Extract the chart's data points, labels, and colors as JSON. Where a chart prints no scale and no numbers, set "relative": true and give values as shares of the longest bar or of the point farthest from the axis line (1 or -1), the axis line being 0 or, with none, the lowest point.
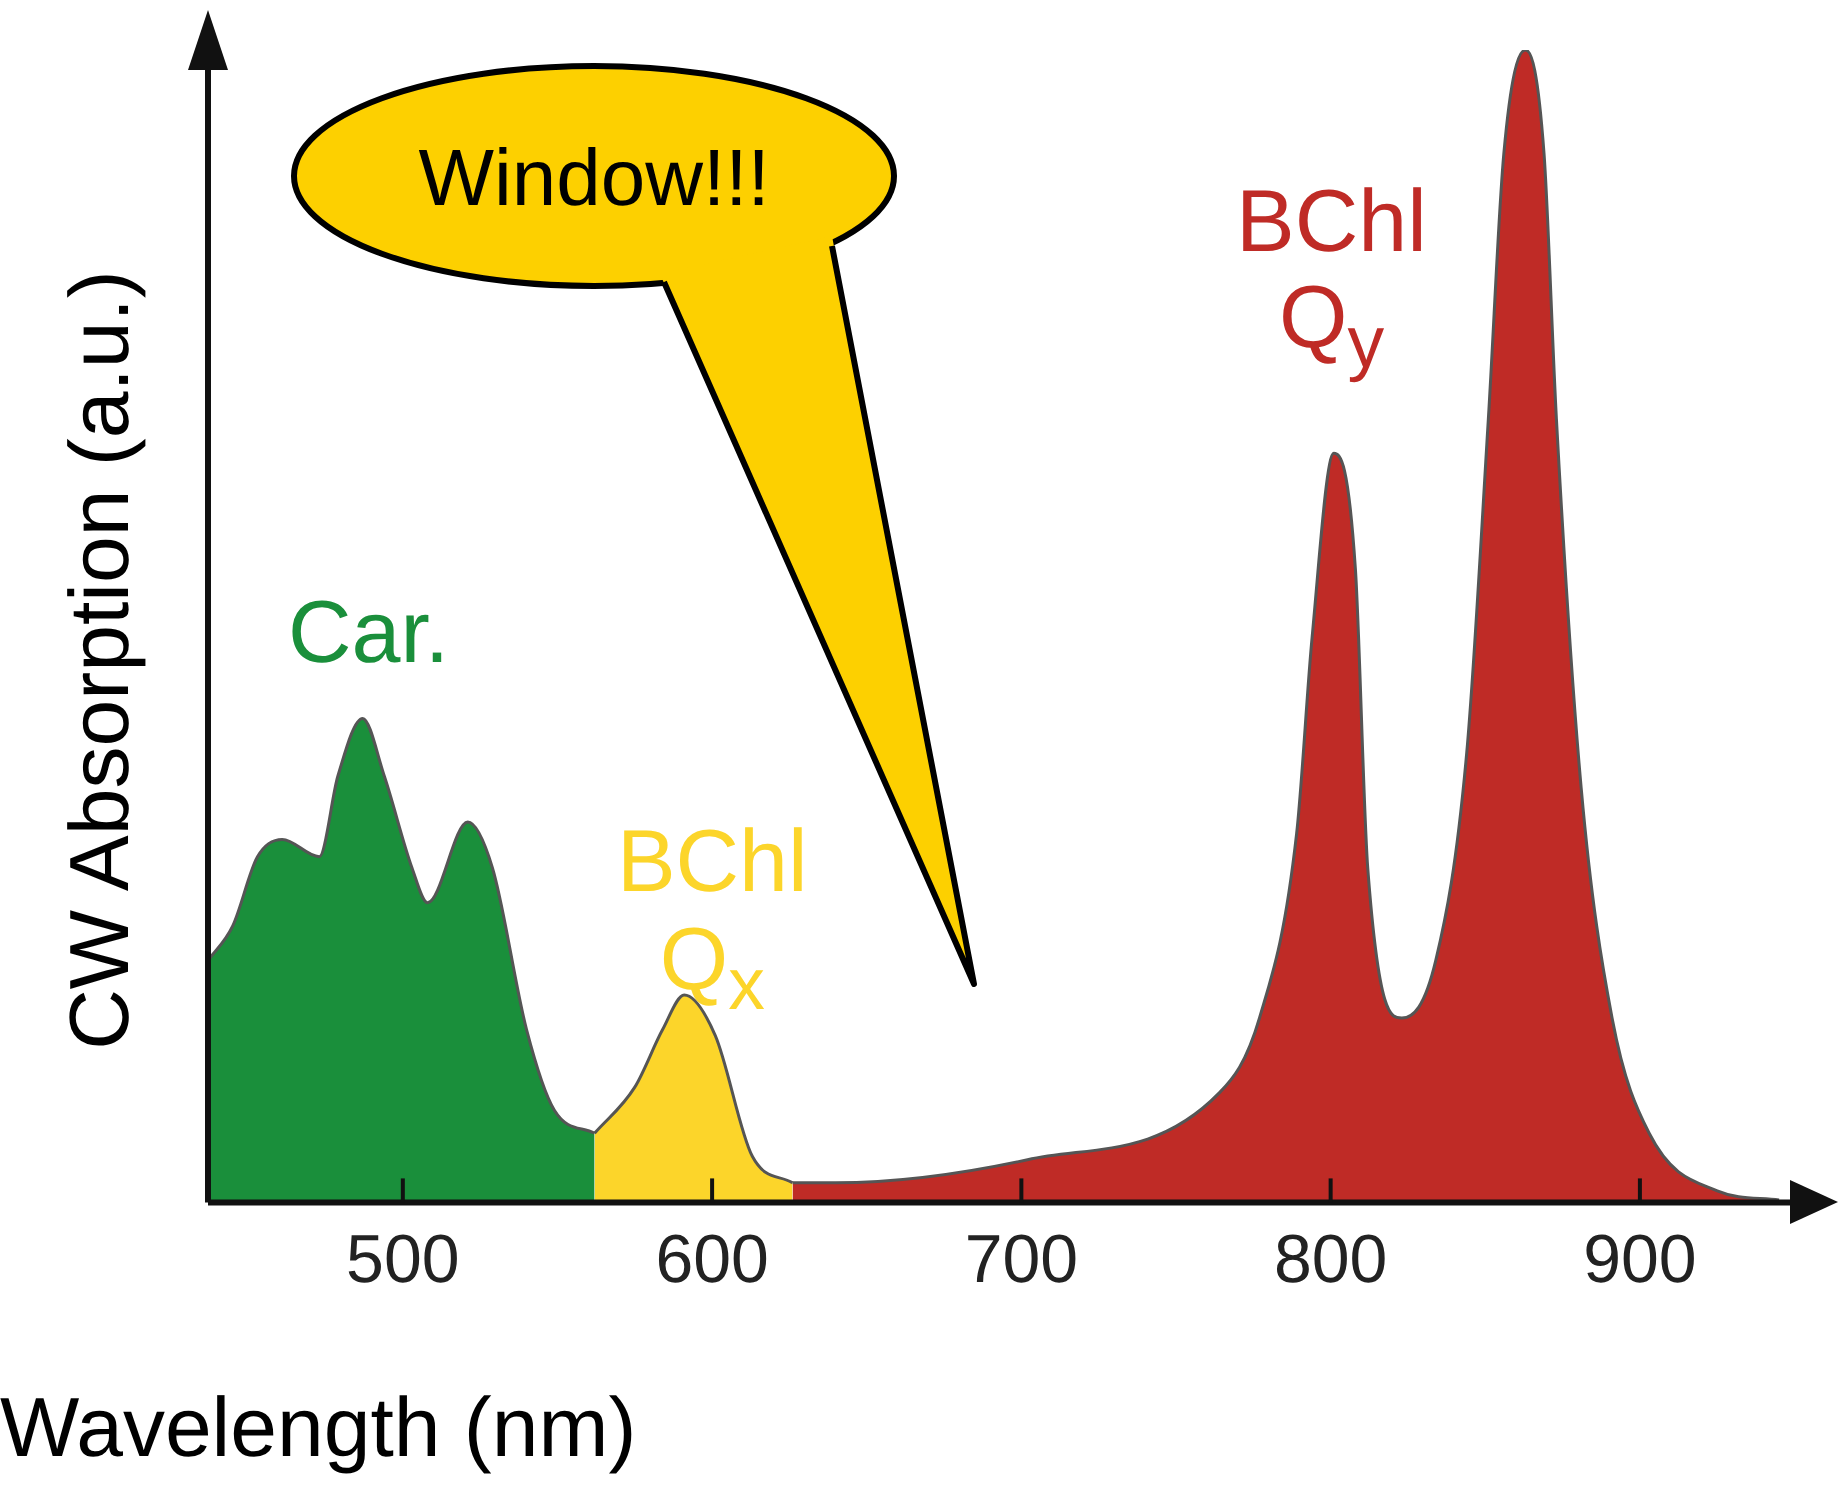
{
  "chart_data": {
    "type": "area",
    "relative": true,
    "xlabel": "Wavelength (nm)",
    "ylabel": "CW Absorption (a.u.)",
    "xlim": [
      437,
      955
    ],
    "xticks": [
      500,
      600,
      700,
      800,
      900
    ],
    "legend": false,
    "annotations": [
      "Window!!!"
    ],
    "series": [
      {
        "name": "Car.",
        "color": "#1a8f3b",
        "x": [
          437,
          445,
          453,
          461,
          473,
          479,
          487,
          494,
          503,
          508,
          521,
          529,
          540,
          549,
          562
        ],
        "values": [
          0.21,
          0.24,
          0.3,
          0.315,
          0.3,
          0.37,
          0.42,
          0.37,
          0.29,
          0.26,
          0.33,
          0.29,
          0.15,
          0.08,
          0.06
        ]
      },
      {
        "name": "BChl Q$_{x}$",
        "color": "#fcd52a",
        "x": [
          562,
          575,
          584,
          591,
          601,
          613,
          626
        ],
        "values": [
          0.06,
          0.1,
          0.15,
          0.18,
          0.145,
          0.04,
          0.017
        ]
      },
      {
        "name": "BChl Q$_{y}$",
        "color": "#bf2b26",
        "x": [
          626,
          640,
          702,
          764,
          777,
          789,
          794,
          801,
          808,
          812,
          823,
          834,
          844,
          851,
          856,
          863,
          869,
          873,
          881,
          891,
          903,
          925,
          945
        ],
        "values": [
          0.017,
          0.017,
          0.037,
          0.095,
          0.16,
          0.32,
          0.49,
          0.65,
          0.55,
          0.29,
          0.16,
          0.21,
          0.39,
          0.68,
          0.91,
          1,
          0.91,
          0.68,
          0.36,
          0.16,
          0.06,
          0.01,
          0.002
        ]
      }
    ]
  }
}
